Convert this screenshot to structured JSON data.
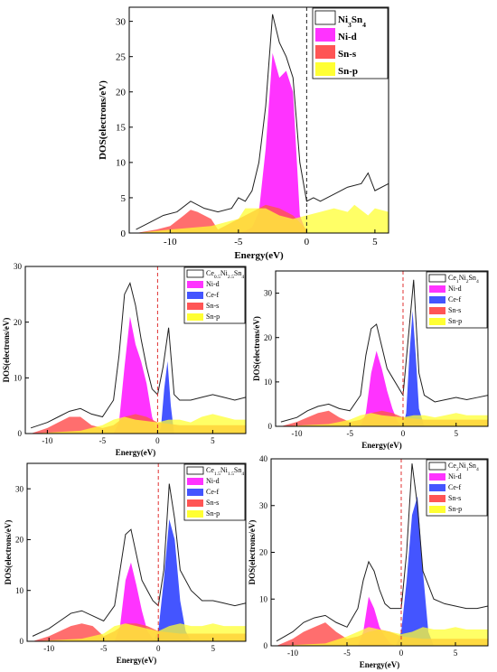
{
  "colors": {
    "total": "#202020",
    "Ni-d": "#ff33ff",
    "Sn-s": "#ff5555",
    "Sn-p": "#ffff33",
    "Ce-f": "#4455ff",
    "fermi_main": "#202020",
    "fermi_sub": "#e03030"
  },
  "chart_data": [
    {
      "type": "area",
      "xlabel": "Energy(eV)",
      "ylabel": "DOS(electrons/eV)",
      "xlim": [
        -13,
        6
      ],
      "ylim": [
        0,
        32
      ],
      "xticks": [
        -10,
        -5,
        0,
        5
      ],
      "yticks": [
        0,
        5,
        10,
        15,
        20,
        25,
        30
      ],
      "fermi_level": 0,
      "legend_position": "top-right",
      "legend": [
        {
          "label": "Ni",
          "sub": "3",
          "label2": "Sn",
          "sub2": "4",
          "series": "Total",
          "style": "outline"
        },
        {
          "label": "Ni-d",
          "series": "Ni-d",
          "style": "fill"
        },
        {
          "label": "Sn-s",
          "series": "Sn-s",
          "style": "fill"
        },
        {
          "label": "Sn-p",
          "series": "Sn-p",
          "style": "fill"
        }
      ],
      "series": [
        {
          "name": "Total",
          "x": [
            -12.5,
            -11.5,
            -10.5,
            -9.5,
            -8.5,
            -7.5,
            -6.5,
            -5.5,
            -5,
            -4.5,
            -4,
            -3.5,
            -3,
            -2.5,
            -2,
            -1.5,
            -1,
            -0.5,
            0,
            0.5,
            1,
            2,
            3,
            4,
            4.5,
            5,
            6
          ],
          "y": [
            0.5,
            1.5,
            2.5,
            3,
            4.5,
            3.5,
            3,
            3.5,
            5,
            4.5,
            6,
            10,
            18,
            31,
            27,
            25,
            22,
            10,
            4.5,
            5,
            4.5,
            5.5,
            6.5,
            7,
            8.5,
            6,
            7
          ]
        },
        {
          "name": "Ni-d",
          "x": [
            -5,
            -4.5,
            -4,
            -3.5,
            -3,
            -2.5,
            -2,
            -1.5,
            -1,
            -0.5,
            0
          ],
          "y": [
            0,
            0.3,
            0.8,
            3,
            12,
            25.5,
            22,
            23,
            20,
            2.5,
            0
          ]
        },
        {
          "name": "Sn-s",
          "x": [
            -12.5,
            -11,
            -10,
            -9,
            -8.5,
            -8,
            -7.5,
            -7,
            -6.5,
            -5,
            -3,
            -2,
            -1,
            0
          ],
          "y": [
            0,
            0.5,
            1,
            2.5,
            3.3,
            3,
            2.5,
            2,
            0.5,
            2,
            4,
            3.5,
            2.5,
            0.5
          ]
        },
        {
          "name": "Sn-p",
          "x": [
            -12.5,
            -10,
            -7,
            -5,
            -4.5,
            -3,
            -2,
            -1,
            0,
            1,
            2,
            3,
            3.5,
            4.5,
            5,
            6
          ],
          "y": [
            0,
            0.5,
            1,
            2,
            3.5,
            3.5,
            2.5,
            2,
            2.5,
            3,
            3.5,
            3,
            4,
            2.5,
            3.5,
            3
          ]
        }
      ]
    },
    {
      "type": "area",
      "xlabel": "Energy(eV)",
      "ylabel": "DOS(electrons/eV)",
      "xlim": [
        -12,
        8
      ],
      "ylim": [
        0,
        30
      ],
      "xticks": [
        -10,
        -5,
        0,
        5
      ],
      "yticks": [
        0,
        10,
        20,
        30
      ],
      "fermi_level": 0,
      "legend_position": "top-right",
      "legend": [
        {
          "label": "Ce",
          "sub": "0.5",
          "label2": "Ni",
          "sub2": "2.5",
          "label3": "Sn",
          "sub3": "4",
          "series": "Total",
          "style": "outline"
        },
        {
          "label": "Ni-d",
          "series": "Ni-d",
          "style": "fill"
        },
        {
          "label": "Ce-f",
          "series": "Ce-f",
          "style": "fill"
        },
        {
          "label": "Sn-s",
          "series": "Sn-s",
          "style": "fill"
        },
        {
          "label": "Sn-p",
          "series": "Sn-p",
          "style": "fill"
        }
      ],
      "series": [
        {
          "name": "Total",
          "x": [
            -11.5,
            -10,
            -9,
            -8,
            -7,
            -6,
            -5,
            -4,
            -3.5,
            -3,
            -2.5,
            -2,
            -1.5,
            -1,
            -0.5,
            0,
            0.5,
            1,
            1.5,
            2,
            3,
            4,
            5,
            6,
            7,
            8
          ],
          "y": [
            1,
            2,
            3,
            4,
            4.5,
            3.5,
            3,
            6,
            14,
            25,
            27,
            23,
            17,
            12,
            8,
            7,
            12,
            19,
            7,
            6,
            6,
            6.5,
            7,
            6.5,
            6,
            6.5
          ]
        },
        {
          "name": "Ni-d",
          "x": [
            -4,
            -3.5,
            -3,
            -2.5,
            -2,
            -1.5,
            -1,
            -0.5,
            0
          ],
          "y": [
            0,
            2,
            12,
            21,
            16,
            13,
            9,
            3,
            0
          ]
        },
        {
          "name": "Ce-f",
          "x": [
            0,
            0.3,
            0.6,
            0.9,
            1.2,
            1.5
          ],
          "y": [
            0,
            1,
            8,
            13,
            5,
            0
          ]
        },
        {
          "name": "Sn-s",
          "x": [
            -11.5,
            -10,
            -9,
            -8,
            -7,
            -6,
            -5,
            -4,
            -3,
            -2,
            -1,
            0,
            2,
            4,
            6,
            8
          ],
          "y": [
            0,
            1,
            2,
            3,
            3,
            1.5,
            1,
            1.5,
            3,
            3.5,
            3,
            2,
            1.5,
            1.5,
            1.5,
            1.5
          ]
        },
        {
          "name": "Sn-p",
          "x": [
            -11.5,
            -7,
            -5,
            -4,
            -3,
            -2,
            0,
            1,
            2,
            3,
            4,
            5,
            6,
            7,
            8
          ],
          "y": [
            0,
            0.5,
            1.5,
            2.5,
            3,
            2.5,
            2,
            2.5,
            2.5,
            2,
            3,
            3.5,
            3,
            2.5,
            2.5
          ]
        }
      ]
    },
    {
      "type": "area",
      "xlabel": "Energy(eV)",
      "ylabel": "DOS(electrons/eV)",
      "xlim": [
        -12,
        8
      ],
      "ylim": [
        0,
        35
      ],
      "xticks": [
        -10,
        -5,
        0,
        5
      ],
      "yticks": [
        0,
        10,
        20,
        30
      ],
      "fermi_level": 0,
      "legend_position": "top-right",
      "legend": [
        {
          "label": "Ce",
          "sub": "1",
          "label2": "Ni",
          "sub2": "2",
          "label3": "Sn",
          "sub3": "4",
          "series": "Total",
          "style": "outline"
        },
        {
          "label": "Ni-d",
          "series": "Ni-d",
          "style": "fill"
        },
        {
          "label": "Ce-f",
          "series": "Ce-f",
          "style": "fill"
        },
        {
          "label": "Sn-s",
          "series": "Sn-s",
          "style": "fill"
        },
        {
          "label": "Sn-p",
          "series": "Sn-p",
          "style": "fill"
        }
      ],
      "series": [
        {
          "name": "Total",
          "x": [
            -11.5,
            -10,
            -9,
            -8,
            -7,
            -6,
            -5,
            -4,
            -3.5,
            -3,
            -2.5,
            -2,
            -1.5,
            -1,
            -0.5,
            0,
            0.5,
            1,
            1.5,
            2,
            3,
            4,
            5,
            6,
            7,
            8
          ],
          "y": [
            1,
            2,
            3.5,
            4.5,
            5,
            4,
            3.5,
            7,
            16,
            22,
            23,
            18,
            13,
            11,
            9,
            7,
            20,
            33,
            12,
            7,
            5.5,
            6,
            6.5,
            6,
            6.5,
            7
          ]
        },
        {
          "name": "Ni-d",
          "x": [
            -4,
            -3.5,
            -3,
            -2.5,
            -2,
            -1.5,
            -1,
            -0.5,
            0
          ],
          "y": [
            0,
            3,
            12,
            17,
            13,
            8,
            4,
            1,
            0
          ]
        },
        {
          "name": "Ce-f",
          "x": [
            0,
            0.3,
            0.6,
            0.9,
            1.2,
            1.5,
            2
          ],
          "y": [
            0,
            3,
            16,
            26,
            16,
            4,
            0
          ]
        },
        {
          "name": "Sn-s",
          "x": [
            -11.5,
            -10,
            -9,
            -8,
            -7,
            -6,
            -5,
            -4,
            -3,
            -2,
            -1,
            0,
            2,
            4,
            6,
            8
          ],
          "y": [
            0,
            1,
            2,
            3,
            3.5,
            2,
            1,
            1.5,
            3,
            3.5,
            3,
            2,
            1.5,
            1.5,
            1.5,
            1.5
          ]
        },
        {
          "name": "Sn-p",
          "x": [
            -11.5,
            -7,
            -5,
            -4,
            -3,
            -2,
            0,
            1,
            2,
            3,
            4,
            5,
            6,
            7,
            8
          ],
          "y": [
            0,
            0.5,
            1.5,
            2.5,
            3,
            2.5,
            2,
            2.5,
            2.5,
            2,
            2.5,
            3,
            2.5,
            2.5,
            2.5
          ]
        }
      ]
    },
    {
      "type": "area",
      "xlabel": "Energy(eV)",
      "ylabel": "DOS(electrons/eV)",
      "xlim": [
        -12,
        8
      ],
      "ylim": [
        0,
        35
      ],
      "xticks": [
        -10,
        -5,
        0,
        5
      ],
      "yticks": [
        0,
        10,
        20,
        30
      ],
      "fermi_level": 0,
      "legend_position": "top-right",
      "legend": [
        {
          "label": "Ce",
          "sub": "1.5",
          "label2": "Ni",
          "sub2": "1.5",
          "label3": "Sn",
          "sub3": "4",
          "series": "Total",
          "style": "outline"
        },
        {
          "label": "Ni-d",
          "series": "Ni-d",
          "style": "fill"
        },
        {
          "label": "Ce-f",
          "series": "Ce-f",
          "style": "fill"
        },
        {
          "label": "Sn-s",
          "series": "Sn-s",
          "style": "fill"
        },
        {
          "label": "Sn-p",
          "series": "Sn-p",
          "style": "fill"
        }
      ],
      "series": [
        {
          "name": "Total",
          "x": [
            -11.5,
            -10,
            -9,
            -8,
            -7,
            -6,
            -5,
            -4,
            -3.5,
            -3,
            -2.5,
            -2,
            -1.5,
            -1,
            -0.5,
            0,
            0.5,
            1,
            1.5,
            2,
            3,
            4,
            5,
            6,
            7,
            8
          ],
          "y": [
            1,
            2.5,
            4,
            5.5,
            6,
            5,
            4,
            7,
            14,
            21,
            22,
            17,
            12,
            10,
            8,
            7,
            14,
            31,
            24,
            14,
            10,
            8,
            8,
            7.5,
            7,
            7.5
          ]
        },
        {
          "name": "Ni-d",
          "x": [
            -4,
            -3.5,
            -3,
            -2.5,
            -2,
            -1.5,
            -1,
            -0.5,
            0
          ],
          "y": [
            0,
            3,
            12,
            15.5,
            11,
            6,
            2,
            0.5,
            0
          ]
        },
        {
          "name": "Ce-f",
          "x": [
            -0.5,
            0,
            0.5,
            1,
            1.5,
            2,
            2.5,
            3
          ],
          "y": [
            0,
            2,
            12,
            24,
            20,
            8,
            2,
            0
          ]
        },
        {
          "name": "Sn-s",
          "x": [
            -11.5,
            -10,
            -9,
            -8,
            -7,
            -6,
            -5,
            -4,
            -3,
            -2,
            -1,
            0,
            2,
            4,
            6,
            8
          ],
          "y": [
            0,
            1,
            2,
            3,
            3.5,
            3,
            1,
            2,
            3.5,
            3.5,
            3,
            2,
            1.5,
            1.5,
            1.5,
            1.5
          ]
        },
        {
          "name": "Sn-p",
          "x": [
            -11.5,
            -7,
            -5,
            -4,
            -3,
            -2,
            0,
            1,
            2,
            3,
            4,
            5,
            6,
            7,
            8
          ],
          "y": [
            0,
            0.5,
            1.5,
            3,
            3.5,
            3,
            2,
            3,
            3.5,
            3,
            3,
            3.5,
            3,
            3,
            3
          ]
        }
      ]
    },
    {
      "type": "area",
      "xlabel": "Energy(eV)",
      "ylabel": "DOS(electrons/eV)",
      "xlim": [
        -12,
        8
      ],
      "ylim": [
        0,
        40
      ],
      "xticks": [
        -10,
        -5,
        0,
        5
      ],
      "yticks": [
        0,
        10,
        20,
        30,
        40
      ],
      "fermi_level": 0,
      "legend_position": "top-right",
      "legend": [
        {
          "label": "Ce",
          "sub": "2",
          "label2": "Ni",
          "sub2": "1",
          "label3": "Sn",
          "sub3": "4",
          "series": "Total",
          "style": "outline"
        },
        {
          "label": "Ni-d",
          "series": "Ni-d",
          "style": "fill"
        },
        {
          "label": "Ce-f",
          "series": "Ce-f",
          "style": "fill"
        },
        {
          "label": "Sn-s",
          "series": "Sn-s",
          "style": "fill"
        },
        {
          "label": "Sn-p",
          "series": "Sn-p",
          "style": "fill"
        }
      ],
      "series": [
        {
          "name": "Total",
          "x": [
            -11.5,
            -10,
            -9,
            -8,
            -7,
            -6,
            -5,
            -4,
            -3.5,
            -3,
            -2.5,
            -2,
            -1.5,
            -1,
            -0.5,
            0,
            0.5,
            1,
            1.5,
            2,
            3,
            4,
            5,
            6,
            7,
            8
          ],
          "y": [
            1,
            3,
            5,
            6,
            6.5,
            5,
            4,
            8,
            14,
            18,
            16,
            12,
            9,
            8,
            8,
            8,
            20,
            39,
            30,
            16,
            10,
            9,
            8.5,
            8,
            8,
            8.5
          ]
        },
        {
          "name": "Ni-d",
          "x": [
            -4,
            -3.5,
            -3,
            -2.5,
            -2,
            -1.5,
            -1,
            -0.5
          ],
          "y": [
            0,
            3,
            10.5,
            8,
            4,
            2,
            0.5,
            0
          ]
        },
        {
          "name": "Ce-f",
          "x": [
            -0.5,
            0,
            0.5,
            1,
            1.5,
            2,
            2.5,
            3
          ],
          "y": [
            0,
            3,
            14,
            28,
            32,
            16,
            3,
            0
          ]
        },
        {
          "name": "Sn-s",
          "x": [
            -11.5,
            -10,
            -9,
            -8,
            -7,
            -6,
            -5,
            -4,
            -3,
            -2,
            -1,
            0,
            2,
            4,
            6,
            8
          ],
          "y": [
            0,
            1.5,
            3,
            4,
            5,
            3,
            1.5,
            2,
            3,
            3.5,
            3,
            2,
            1.5,
            1.5,
            1.5,
            1.5
          ]
        },
        {
          "name": "Sn-p",
          "x": [
            -11.5,
            -7,
            -5,
            -4,
            -3,
            -2,
            0,
            1,
            2,
            3,
            4,
            5,
            6,
            7,
            8
          ],
          "y": [
            0,
            0.5,
            2,
            3,
            4,
            3.5,
            2.5,
            3,
            4,
            3.5,
            3.5,
            4,
            3.5,
            3.5,
            3.5
          ]
        }
      ]
    }
  ]
}
